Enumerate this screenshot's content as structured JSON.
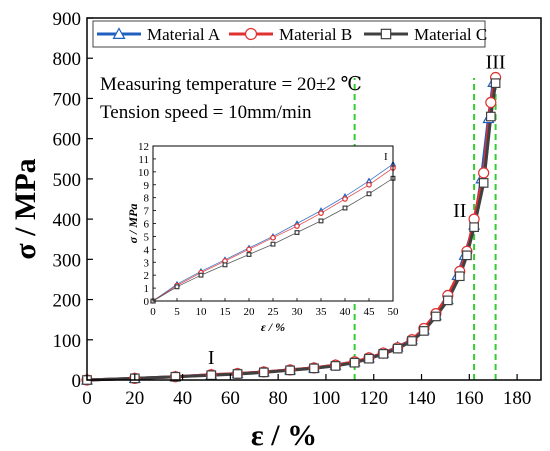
{
  "chart_data": [
    {
      "type": "line",
      "xlabel": "ε / %",
      "ylabel": "σ / MPa",
      "xlim": [
        0,
        190
      ],
      "ylim": [
        0,
        900
      ],
      "xticks": [
        0,
        20,
        40,
        60,
        80,
        100,
        120,
        140,
        160,
        180
      ],
      "yticks": [
        0,
        100,
        200,
        300,
        400,
        500,
        600,
        700,
        800,
        900
      ],
      "legend": "top",
      "annotations": [
        "Measuring temperature = 20±2 ℃",
        "Tension speed = 10mm/min"
      ],
      "region_labels": [
        {
          "text": "I",
          "x": 52,
          "y": 40
        },
        {
          "text": "II",
          "x": 156,
          "y": 405
        },
        {
          "text": "III",
          "x": 171,
          "y": 775
        }
      ],
      "reference_lines": [
        {
          "x": 112,
          "style": "dashed",
          "color": "#33cc33"
        },
        {
          "x": 162,
          "style": "dashed",
          "color": "#33cc33"
        },
        {
          "x": 171,
          "style": "dashed",
          "color": "#33cc33"
        }
      ],
      "series": [
        {
          "name": "Material A",
          "color": "#1f5fbf",
          "marker": "triangle",
          "points": [
            [
              0,
              0
            ],
            [
              20,
              4
            ],
            [
              37,
              8
            ],
            [
              52,
              13
            ],
            [
              63,
              16
            ],
            [
              74,
              20
            ],
            [
              85,
              25
            ],
            [
              95,
              30
            ],
            [
              104,
              37
            ],
            [
              112,
              45
            ],
            [
              118,
              55
            ],
            [
              124,
              67
            ],
            [
              130,
              82
            ],
            [
              136,
              100
            ],
            [
              141,
              125
            ],
            [
              146,
              160
            ],
            [
              151,
              200
            ],
            [
              155,
              260
            ],
            [
              158,
              310
            ],
            [
              162,
              385
            ],
            [
              165,
              500
            ],
            [
              168,
              650
            ],
            [
              170,
              740
            ]
          ]
        },
        {
          "name": "Material B",
          "color": "#e03030",
          "marker": "circle",
          "points": [
            [
              0,
              0
            ],
            [
              20,
              4
            ],
            [
              37,
              8
            ],
            [
              52,
              13
            ],
            [
              63,
              16
            ],
            [
              74,
              20
            ],
            [
              85,
              25
            ],
            [
              95,
              30
            ],
            [
              104,
              37
            ],
            [
              112,
              45
            ],
            [
              118,
              55
            ],
            [
              124,
              67
            ],
            [
              130,
              80
            ],
            [
              136,
              100
            ],
            [
              141,
              128
            ],
            [
              146,
              165
            ],
            [
              151,
              210
            ],
            [
              156,
              270
            ],
            [
              159,
              320
            ],
            [
              162,
              400
            ],
            [
              166,
              515
            ],
            [
              169,
              690
            ],
            [
              171,
              752
            ]
          ]
        },
        {
          "name": "Material C",
          "color": "#404040",
          "marker": "square",
          "points": [
            [
              0,
              0
            ],
            [
              20,
              4
            ],
            [
              37,
              8
            ],
            [
              52,
              12
            ],
            [
              63,
              15
            ],
            [
              74,
              19
            ],
            [
              85,
              24
            ],
            [
              95,
              29
            ],
            [
              104,
              35
            ],
            [
              112,
              43
            ],
            [
              118,
              53
            ],
            [
              124,
              65
            ],
            [
              130,
              78
            ],
            [
              136,
              97
            ],
            [
              141,
              122
            ],
            [
              146,
              158
            ],
            [
              151,
              198
            ],
            [
              156,
              258
            ],
            [
              159,
              310
            ],
            [
              162,
              380
            ],
            [
              166,
              490
            ],
            [
              169,
              655
            ],
            [
              171,
              738
            ]
          ]
        }
      ]
    },
    {
      "type": "line",
      "xlabel": "ε / %",
      "ylabel": "σ / MPa",
      "xlim": [
        0,
        50
      ],
      "ylim": [
        0,
        12
      ],
      "xticks": [
        0,
        5,
        10,
        15,
        20,
        25,
        30,
        35,
        40,
        45,
        50
      ],
      "yticks": [
        0,
        1,
        2,
        3,
        4,
        5,
        6,
        7,
        8,
        9,
        10,
        11,
        12
      ],
      "annotations": [
        "I"
      ],
      "series": [
        {
          "color": "#1f5fbf",
          "marker": "triangle",
          "points": [
            [
              0,
              0
            ],
            [
              5,
              1.3
            ],
            [
              10,
              2.3
            ],
            [
              15,
              3.2
            ],
            [
              20,
              4.1
            ],
            [
              25,
              5.0
            ],
            [
              30,
              6.0
            ],
            [
              35,
              7.0
            ],
            [
              40,
              8.1
            ],
            [
              45,
              9.3
            ],
            [
              50,
              10.6
            ]
          ]
        },
        {
          "color": "#e03030",
          "marker": "circle",
          "points": [
            [
              0,
              0
            ],
            [
              5,
              1.2
            ],
            [
              10,
              2.2
            ],
            [
              15,
              3.1
            ],
            [
              20,
              4.0
            ],
            [
              25,
              4.9
            ],
            [
              30,
              5.8
            ],
            [
              35,
              6.8
            ],
            [
              40,
              7.9
            ],
            [
              45,
              9.0
            ],
            [
              50,
              10.3
            ]
          ]
        },
        {
          "color": "#404040",
          "marker": "square",
          "points": [
            [
              0,
              0
            ],
            [
              5,
              1.1
            ],
            [
              10,
              2.0
            ],
            [
              15,
              2.8
            ],
            [
              20,
              3.6
            ],
            [
              25,
              4.4
            ],
            [
              30,
              5.3
            ],
            [
              35,
              6.2
            ],
            [
              40,
              7.2
            ],
            [
              45,
              8.3
            ],
            [
              50,
              9.5
            ]
          ]
        }
      ]
    }
  ]
}
